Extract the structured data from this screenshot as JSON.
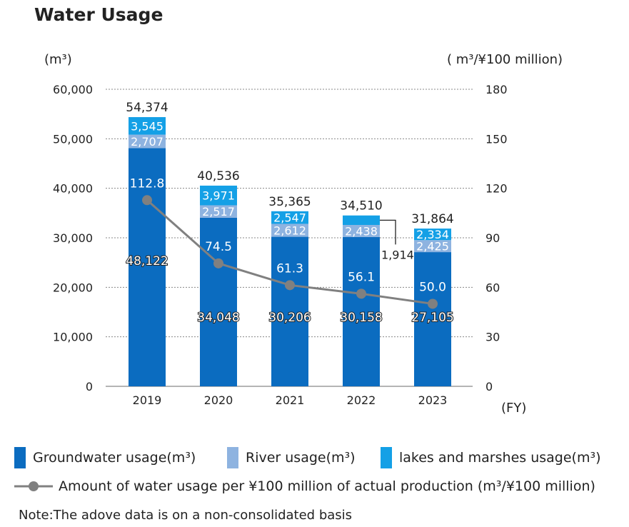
{
  "title": "Water Usage",
  "chart_data": {
    "type": "bar",
    "title": "Water Usage",
    "categories": [
      "2019",
      "2020",
      "2021",
      "2022",
      "2023"
    ],
    "xlabel": "(FY)",
    "left_axis": {
      "unit_label": "(m³)",
      "ylim": [
        0,
        60000
      ],
      "ticks": [
        0,
        10000,
        20000,
        30000,
        40000,
        50000,
        60000
      ],
      "tick_labels": [
        "0",
        "10,000",
        "20,000",
        "30,000",
        "40,000",
        "50,000",
        "60,000"
      ]
    },
    "right_axis": {
      "unit_label": "( m³/¥100 million)",
      "ylim": [
        0,
        180
      ],
      "ticks": [
        0,
        30,
        60,
        90,
        120,
        150,
        180
      ],
      "tick_labels": [
        "0",
        "30",
        "60",
        "90",
        "120",
        "150",
        "180"
      ]
    },
    "stacked": true,
    "grid": true,
    "series": [
      {
        "name": "Groundwater usage(m³)",
        "type": "bar",
        "color": "#0b6cc0",
        "values": [
          48122,
          34048,
          30206,
          30158,
          27105
        ],
        "labels": [
          "48,122",
          "34,048",
          "30,206",
          "30,158",
          "27,105"
        ]
      },
      {
        "name": "River usage(m³)",
        "type": "bar",
        "color": "#8eb3e0",
        "values": [
          2707,
          2517,
          2612,
          2438,
          2425
        ],
        "labels": [
          "2,707",
          "2,517",
          "2,612",
          "2,438",
          "2,425"
        ]
      },
      {
        "name": "lakes and marshes usage(m³)",
        "type": "bar",
        "color": "#14a0e6",
        "values": [
          3545,
          3971,
          2547,
          1914,
          2334
        ],
        "labels": [
          "3,545",
          "3,971",
          "2,547",
          "1,914",
          "2,334"
        ]
      },
      {
        "name": "Amount of water usage per ¥100 million of actual production (m³/¥100 million)",
        "type": "line",
        "axis": "right",
        "color": "#808080",
        "values": [
          112.8,
          74.5,
          61.3,
          56.1,
          50.0
        ],
        "labels": [
          "112.8",
          "74.5",
          "61.3",
          "56.1",
          "50.0"
        ]
      }
    ],
    "totals": [
      54374,
      40536,
      35365,
      34510,
      31864
    ],
    "total_labels": [
      "54,374",
      "40,536",
      "35,365",
      "34,510",
      "31,864"
    ]
  },
  "note": "Note:The adove data is on a non-consolidated basis"
}
